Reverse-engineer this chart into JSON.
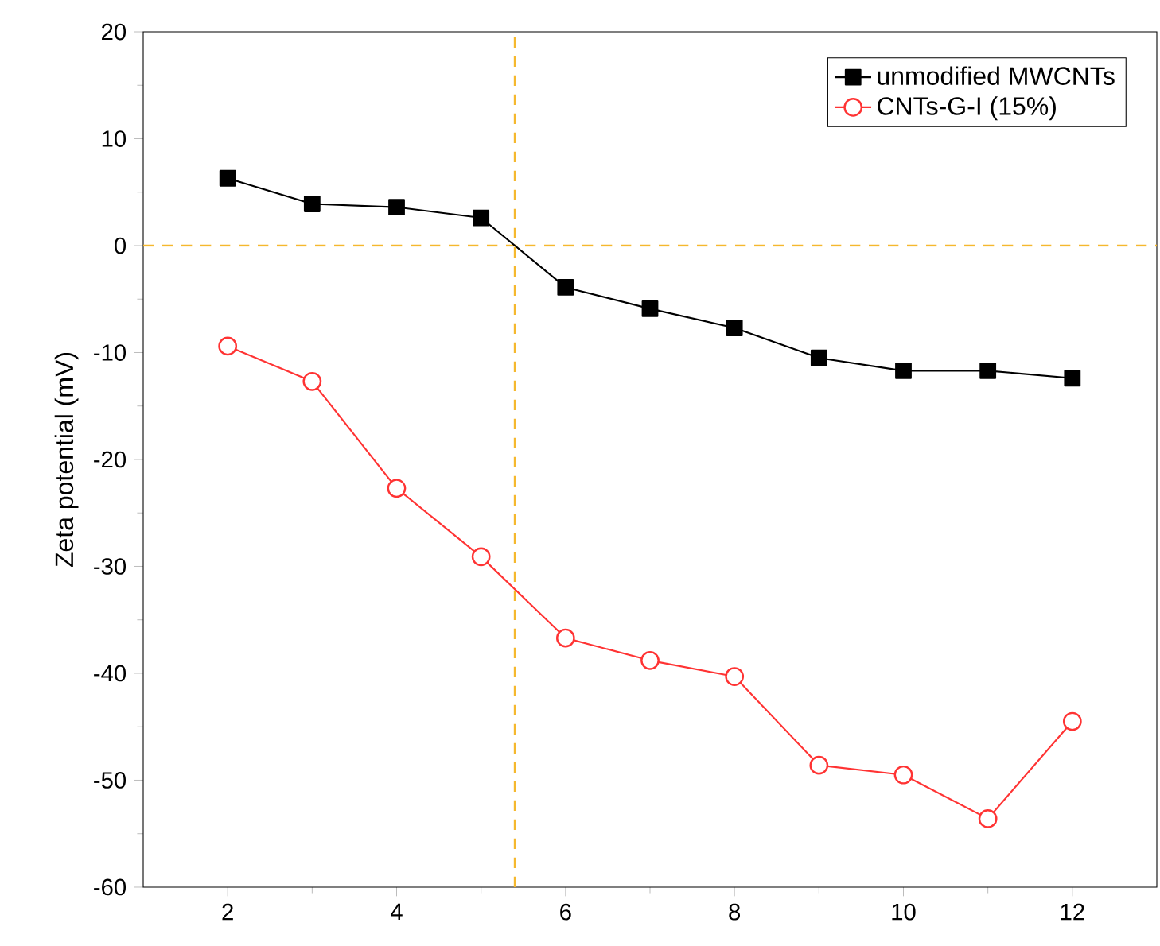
{
  "chart_data": {
    "type": "line",
    "ylabel": "Zeta potential (mV)",
    "x": [
      2,
      3,
      4,
      5,
      6,
      7,
      8,
      9,
      10,
      11,
      12
    ],
    "series": [
      {
        "name": "unmodified MWCNTs",
        "color": "#000000",
        "marker": "square",
        "values": [
          6.3,
          3.9,
          3.6,
          2.6,
          -3.9,
          -5.9,
          -7.7,
          -10.5,
          -11.7,
          -11.7,
          -12.4
        ]
      },
      {
        "name": "CNTs-G-I (15%)",
        "color": "#ff3333",
        "marker": "circle",
        "values": [
          -9.4,
          -12.7,
          -22.7,
          -29.1,
          -36.7,
          -38.8,
          -40.3,
          -48.6,
          -49.5,
          -53.6,
          -44.5
        ]
      }
    ],
    "xlim": [
      1,
      13
    ],
    "ylim": [
      -60,
      20
    ],
    "xticks": [
      2,
      4,
      6,
      8,
      10,
      12
    ],
    "yticks": [
      -60,
      -50,
      -40,
      -30,
      -20,
      -10,
      0,
      10,
      20
    ],
    "ref_lines": [
      {
        "axis": "y",
        "value": 0,
        "color": "#f5b82e",
        "line_style": "dashed"
      },
      {
        "axis": "x",
        "value": 5.4,
        "color": "#f5b82e",
        "line_style": "dashed"
      }
    ],
    "legend": "top right",
    "grid": false
  }
}
